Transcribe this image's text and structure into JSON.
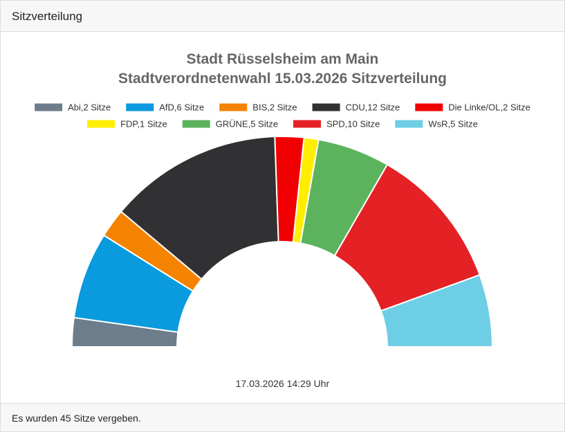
{
  "header": {
    "title": "Sitzverteilung"
  },
  "footer": {
    "text": "Es wurden 45 Sitze vergeben."
  },
  "chart_data": {
    "type": "pie",
    "variant": "semi-donut",
    "title": "Stadt Rüsselsheim am Main",
    "subtitle": "Stadtverordnetenwahl 15.03.2026 Sitzverteilung",
    "timestamp": "17.03.2026 14:29 Uhr",
    "total_seats": 45,
    "legend_position": "top-center",
    "series": [
      {
        "name": "Abi",
        "label": "Abi,2 Sitze",
        "value": 2,
        "color": "#6d7d8b"
      },
      {
        "name": "AfD",
        "label": "AfD,6 Sitze",
        "value": 6,
        "color": "#0a9ade"
      },
      {
        "name": "BIS",
        "label": "BIS,2 Sitze",
        "value": 2,
        "color": "#f58300"
      },
      {
        "name": "CDU",
        "label": "CDU,12 Sitze",
        "value": 12,
        "color": "#313033"
      },
      {
        "name": "Die Linke/OL",
        "label": "Die Linke/OL,2 Sitze",
        "value": 2,
        "color": "#f00000"
      },
      {
        "name": "FDP",
        "label": "FDP,1 Sitze",
        "value": 1,
        "color": "#ffee00"
      },
      {
        "name": "GRÜNE",
        "label": "GRÜNE,5 Sitze",
        "value": 5,
        "color": "#5cb35e"
      },
      {
        "name": "SPD",
        "label": "SPD,10 Sitze",
        "value": 10,
        "color": "#e42125"
      },
      {
        "name": "WsR",
        "label": "WsR,5 Sitze",
        "value": 5,
        "color": "#6dcee5"
      }
    ]
  }
}
